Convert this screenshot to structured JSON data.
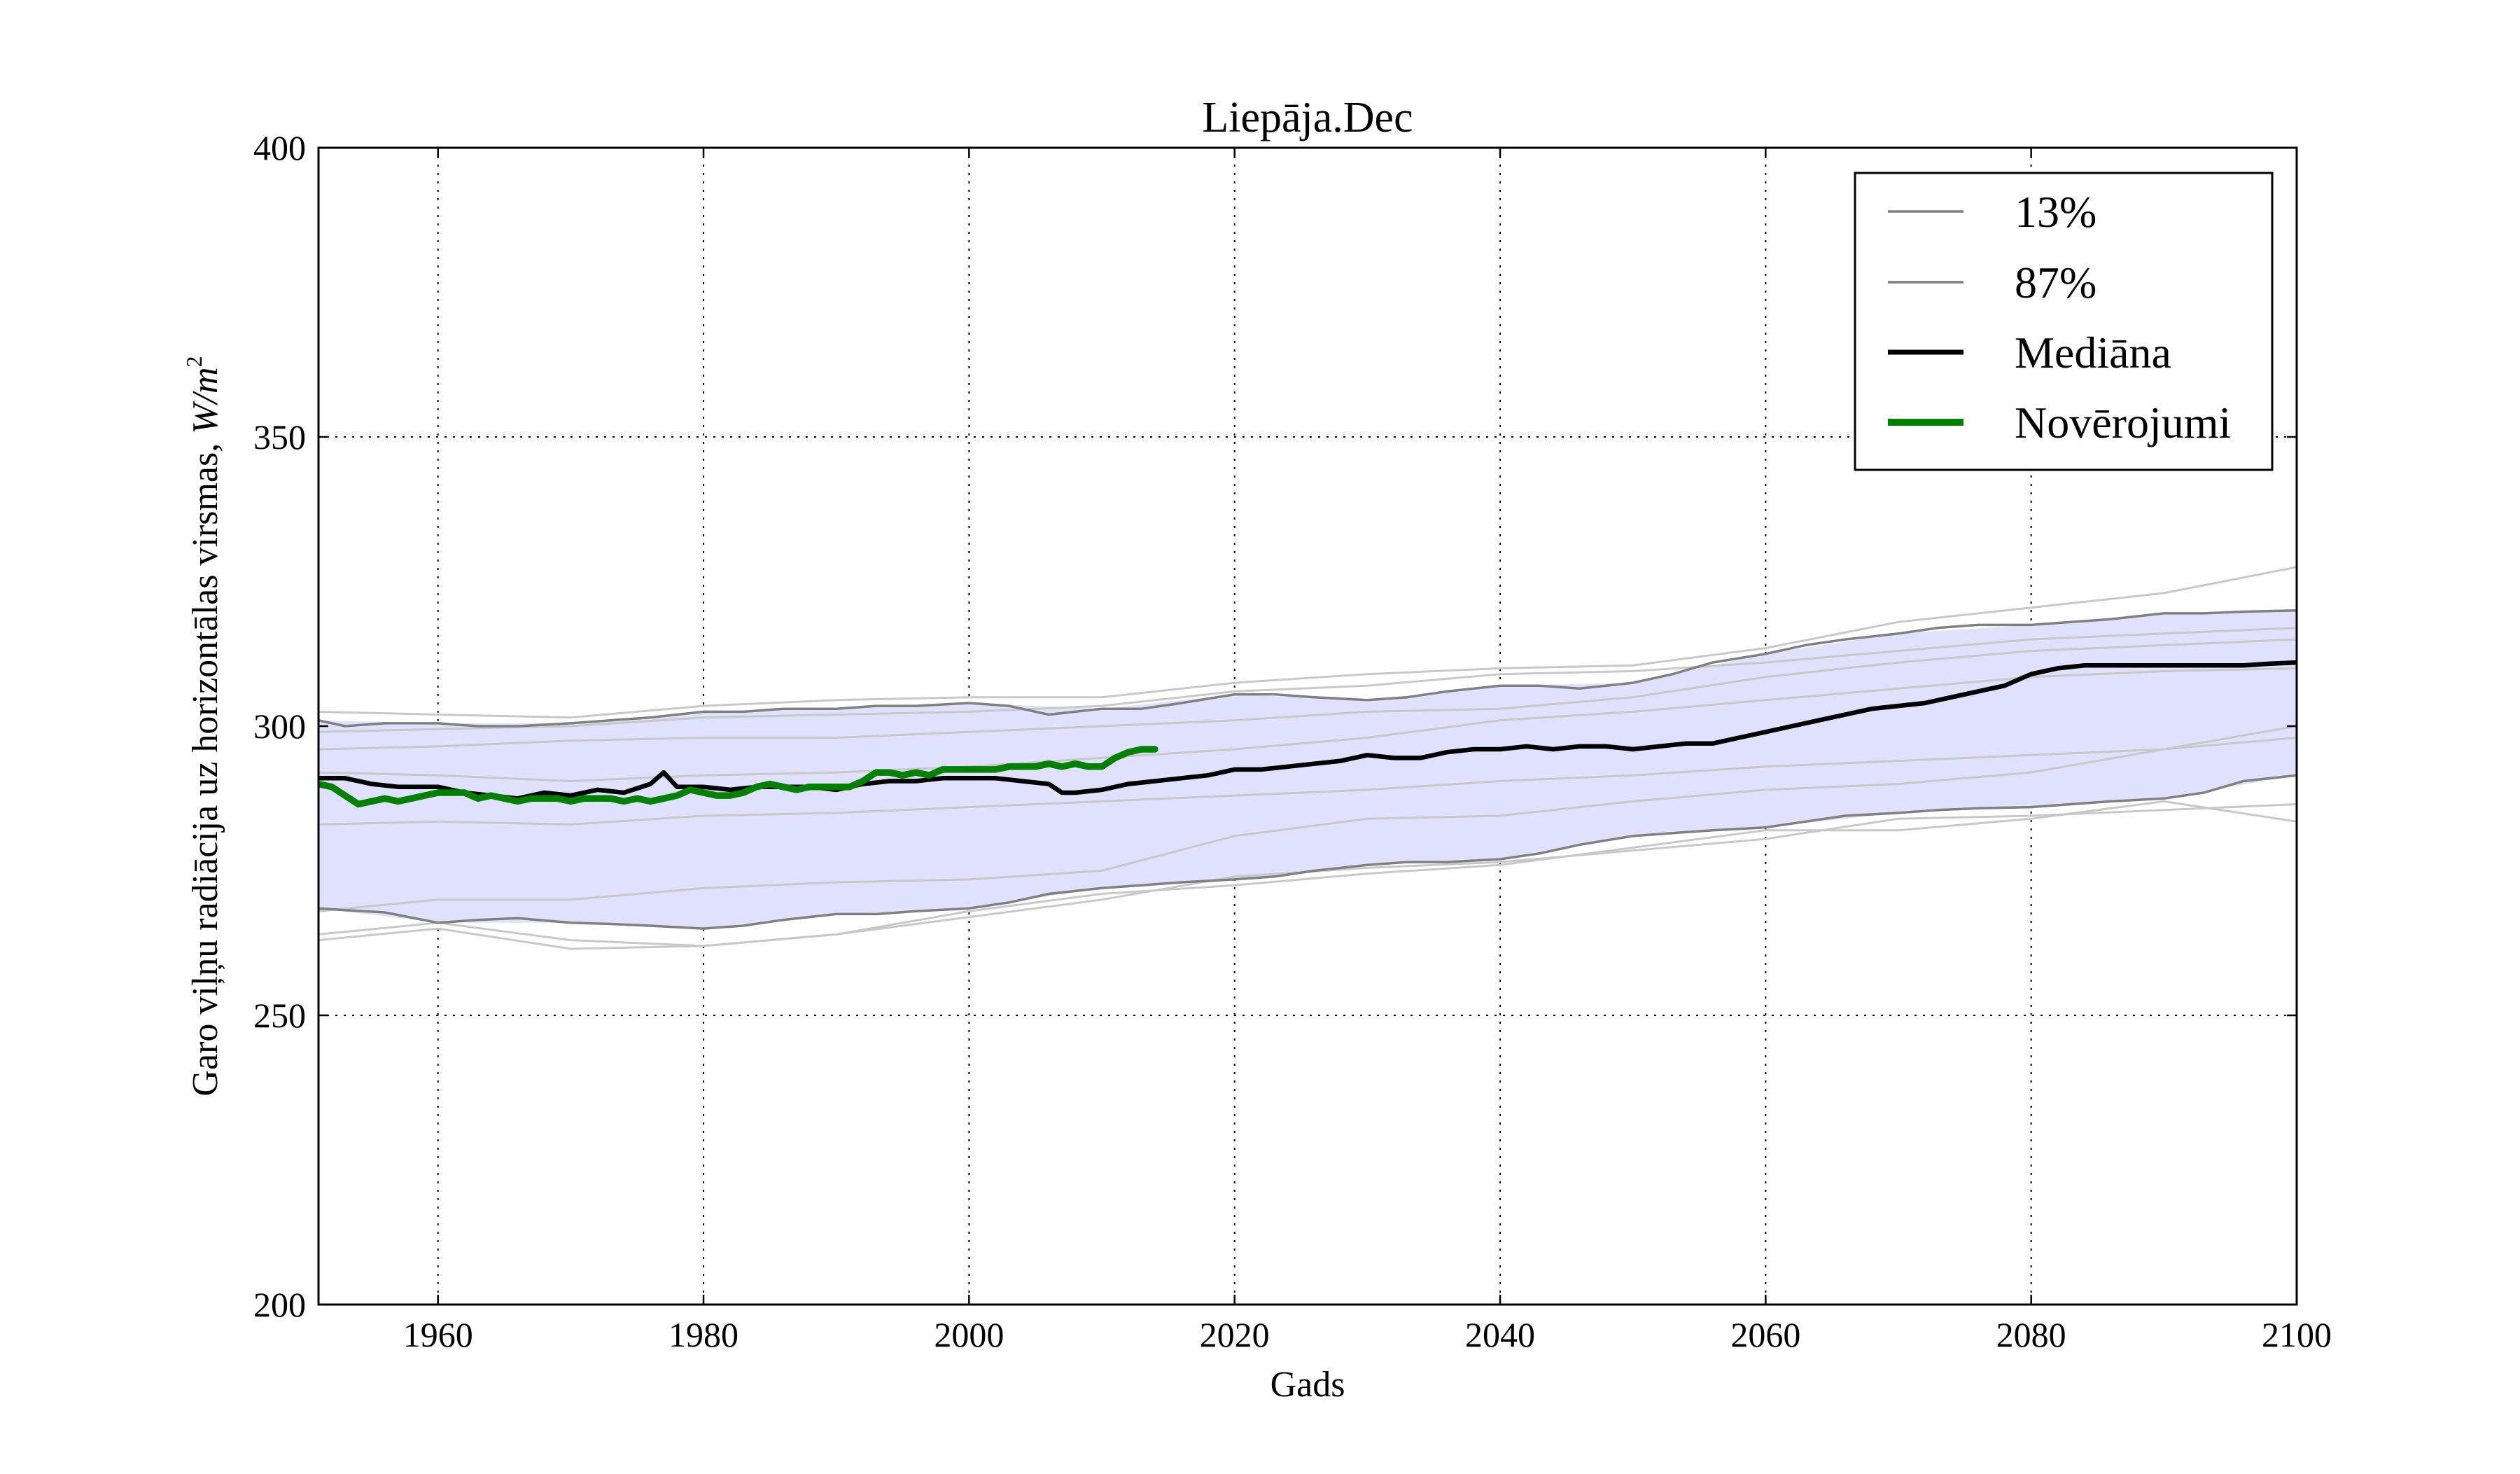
{
  "chart_data": {
    "type": "line",
    "title": "Liepāja.Dec",
    "xlabel": "Gads",
    "ylabel_text": "Garo viļņu radiācija uz horizontālas virsmas, ",
    "ylabel_unit": "W/m",
    "ylabel_unit_sup": "2",
    "xlim": [
      1951,
      2100
    ],
    "ylim": [
      200,
      400
    ],
    "x_ticks": [
      1960,
      1980,
      2000,
      2020,
      2040,
      2060,
      2080,
      2100
    ],
    "y_ticks": [
      200,
      250,
      300,
      350,
      400
    ],
    "grid": true,
    "legend_position": "top-right",
    "legend": [
      {
        "label": "13%",
        "color": "#808080"
      },
      {
        "label": "87%",
        "color": "#808080"
      },
      {
        "label": "Mediāna",
        "color": "#000000"
      },
      {
        "label": "Novērojumi",
        "color": "#008000"
      }
    ],
    "colors": {
      "band_fill": "#e0e0ff",
      "p13": "#808080",
      "p87": "#808080",
      "median": "#000000",
      "observations": "#008000",
      "members": "#c8c8c8"
    },
    "band": {
      "x": [
        1951,
        1960,
        1970,
        1980,
        1990,
        2000,
        2010,
        2020,
        2030,
        2040,
        2050,
        2060,
        2070,
        2080,
        2090,
        2100
      ],
      "lower": [
        268.5,
        266,
        266,
        265,
        267.5,
        268.5,
        272,
        273.5,
        276,
        277,
        281,
        282.5,
        285,
        286,
        287.5,
        291.5
      ],
      "upper": [
        301,
        300.5,
        300.5,
        302.5,
        303,
        304,
        303,
        305.5,
        304.5,
        307,
        307.5,
        312.5,
        316,
        317.5,
        319.5,
        320
      ]
    },
    "series": [
      {
        "name": "13%",
        "x": [
          1951,
          1953,
          1956,
          1960,
          1963,
          1966,
          1970,
          1973,
          1976,
          1980,
          1983,
          1986,
          1990,
          1993,
          1996,
          2000,
          2003,
          2006,
          2010,
          2013,
          2016,
          2020,
          2023,
          2026,
          2030,
          2033,
          2036,
          2040,
          2043,
          2046,
          2050,
          2053,
          2056,
          2060,
          2063,
          2066,
          2070,
          2073,
          2076,
          2080,
          2083,
          2086,
          2090,
          2093,
          2096,
          2100
        ],
        "values": [
          268.5,
          268.2,
          267.8,
          266,
          266.5,
          266.8,
          266,
          265.8,
          265.5,
          265,
          265.5,
          266.5,
          267.5,
          267.5,
          268,
          268.5,
          269.5,
          271,
          272,
          272.5,
          273,
          273.5,
          274,
          275,
          276,
          276.5,
          276.5,
          277,
          278,
          279.5,
          281,
          281.5,
          282,
          282.5,
          283.5,
          284.5,
          285,
          285.5,
          285.8,
          286,
          286.5,
          287,
          287.5,
          288.5,
          290.5,
          291.5
        ]
      },
      {
        "name": "87%",
        "x": [
          1951,
          1953,
          1956,
          1960,
          1963,
          1966,
          1970,
          1973,
          1976,
          1980,
          1983,
          1986,
          1990,
          1993,
          1996,
          2000,
          2003,
          2006,
          2010,
          2013,
          2016,
          2020,
          2023,
          2026,
          2030,
          2033,
          2036,
          2040,
          2043,
          2046,
          2050,
          2053,
          2056,
          2060,
          2063,
          2066,
          2070,
          2073,
          2076,
          2080,
          2083,
          2086,
          2090,
          2093,
          2096,
          2100
        ],
        "values": [
          301,
          300,
          300.5,
          300.5,
          300,
          300,
          300.5,
          301,
          301.5,
          302.5,
          302.5,
          303,
          303,
          303.5,
          303.5,
          304,
          303.5,
          302,
          303,
          303,
          304,
          305.5,
          305.5,
          305,
          304.5,
          305,
          306,
          307,
          307,
          306.5,
          307.5,
          309,
          311,
          312.5,
          314,
          315,
          316,
          317,
          317.5,
          317.5,
          318,
          318.5,
          319.5,
          319.5,
          319.8,
          320
        ]
      },
      {
        "name": "Mediāna",
        "x": [
          1951,
          1953,
          1955,
          1957,
          1960,
          1962,
          1964,
          1966,
          1968,
          1970,
          1972,
          1974,
          1976,
          1977,
          1978,
          1980,
          1982,
          1984,
          1986,
          1988,
          1990,
          1992,
          1994,
          1996,
          1998,
          2000,
          2002,
          2004,
          2006,
          2007,
          2008,
          2010,
          2012,
          2014,
          2016,
          2018,
          2020,
          2022,
          2024,
          2026,
          2028,
          2030,
          2032,
          2034,
          2036,
          2038,
          2040,
          2042,
          2044,
          2046,
          2048,
          2050,
          2052,
          2054,
          2056,
          2058,
          2060,
          2062,
          2064,
          2066,
          2068,
          2070,
          2072,
          2074,
          2076,
          2078,
          2080,
          2082,
          2084,
          2086,
          2088,
          2090,
          2092,
          2094,
          2096,
          2098,
          2100
        ],
        "values": [
          291,
          291,
          290,
          289.5,
          289.5,
          288.5,
          288,
          287.5,
          288.5,
          288,
          289,
          288.5,
          290,
          292,
          289.5,
          289.5,
          289,
          289.5,
          289.5,
          289.5,
          289,
          290,
          290.5,
          290.5,
          291,
          291,
          291,
          290.5,
          290,
          288.5,
          288.5,
          289,
          290,
          290.5,
          291,
          291.5,
          292.5,
          292.5,
          293,
          293.5,
          294,
          295,
          294.5,
          294.5,
          295.5,
          296,
          296,
          296.5,
          296,
          296.5,
          296.5,
          296,
          296.5,
          297,
          297,
          298,
          299,
          300,
          301,
          302,
          303,
          303.5,
          304,
          305,
          306,
          307,
          309,
          310,
          310.5,
          310.5,
          310.5,
          310.5,
          310.5,
          310.5,
          310.5,
          310.8,
          311
        ]
      },
      {
        "name": "Novērojumi",
        "x": [
          1951,
          1952,
          1953,
          1954,
          1955,
          1956,
          1957,
          1958,
          1959,
          1960,
          1961,
          1962,
          1963,
          1964,
          1965,
          1966,
          1967,
          1968,
          1969,
          1970,
          1971,
          1972,
          1973,
          1974,
          1975,
          1976,
          1977,
          1978,
          1979,
          1980,
          1981,
          1982,
          1983,
          1984,
          1985,
          1986,
          1987,
          1988,
          1989,
          1990,
          1991,
          1992,
          1993,
          1994,
          1995,
          1996,
          1997,
          1998,
          1999,
          2000,
          2001,
          2002,
          2003,
          2004,
          2005,
          2006,
          2007,
          2008,
          2009,
          2010,
          2011,
          2012,
          2013,
          2014
        ],
        "values": [
          290,
          289.5,
          288,
          286.5,
          287,
          287.5,
          287,
          287.5,
          288,
          288.5,
          288.5,
          288.5,
          287.5,
          288,
          287.5,
          287,
          287.5,
          287.5,
          287.5,
          287,
          287.5,
          287.5,
          287.5,
          287,
          287.5,
          287,
          287.5,
          288,
          289,
          288.5,
          288,
          288,
          288.5,
          289.5,
          290,
          289.5,
          289,
          289.5,
          289.5,
          289.5,
          289.5,
          290.5,
          292,
          292,
          291.5,
          292,
          291.5,
          292.5,
          292.5,
          292.5,
          292.5,
          292.5,
          293,
          293,
          293,
          293.5,
          293,
          293.5,
          293,
          293,
          294.5,
          295.5,
          296,
          296
        ]
      },
      {
        "name": "",
        "x": [
          1951,
          1960,
          1970,
          1980,
          1990,
          2000,
          2010,
          2020,
          2030,
          2040,
          2050,
          2060,
          2070,
          2080,
          2090,
          2100
        ],
        "values": [
          263,
          265,
          261.5,
          262,
          264,
          267,
          270,
          274,
          275.5,
          276.5,
          278.5,
          280.5,
          284,
          284.5,
          285.5,
          286.5
        ]
      },
      {
        "name": "",
        "x": [
          1951,
          1960,
          1970,
          1980,
          1990,
          2000,
          2010,
          2020,
          2030,
          2040,
          2050,
          2060,
          2070,
          2080,
          2090,
          2100
        ],
        "values": [
          264,
          266,
          263,
          262,
          264,
          268,
          271,
          272.5,
          274.5,
          276,
          279,
          282,
          282,
          284,
          287,
          283.5
        ]
      },
      {
        "name": "",
        "x": [
          1951,
          1960,
          1970,
          1980,
          1990,
          2000,
          2010,
          2020,
          2030,
          2040,
          2050,
          2060,
          2070,
          2080,
          2090,
          2100
        ],
        "values": [
          268,
          270,
          270,
          272,
          273,
          273.5,
          275,
          281,
          284,
          284.5,
          287,
          289,
          290,
          292,
          296,
          300
        ]
      },
      {
        "name": "",
        "x": [
          1951,
          1960,
          1970,
          1980,
          1990,
          2000,
          2010,
          2020,
          2030,
          2040,
          2050,
          2060,
          2070,
          2080,
          2090,
          2100
        ],
        "values": [
          283,
          283.5,
          283,
          284.5,
          285,
          286,
          287,
          288,
          289,
          290.5,
          291.5,
          293,
          294,
          295,
          296,
          298
        ]
      },
      {
        "name": "",
        "x": [
          1951,
          1960,
          1970,
          1980,
          1990,
          2000,
          2010,
          2020,
          2030,
          2040,
          2050,
          2060,
          2070,
          2080,
          2090,
          2100
        ],
        "values": [
          292,
          291.5,
          290.5,
          291.5,
          292,
          293,
          294.5,
          296,
          298,
          301,
          302.5,
          304.5,
          306.5,
          308.5,
          309.5,
          310
        ]
      },
      {
        "name": "",
        "x": [
          1951,
          1960,
          1970,
          1980,
          1990,
          2000,
          2010,
          2020,
          2030,
          2040,
          2050,
          2060,
          2070,
          2080,
          2090,
          2100
        ],
        "values": [
          296,
          296.5,
          297.5,
          298,
          298,
          299,
          300,
          301,
          302.5,
          303,
          305,
          308.5,
          311,
          313,
          314,
          315
        ]
      },
      {
        "name": "",
        "x": [
          1951,
          1960,
          1970,
          1980,
          1990,
          2000,
          2010,
          2020,
          2030,
          2040,
          2050,
          2060,
          2070,
          2080,
          2090,
          2100
        ],
        "values": [
          299,
          299.5,
          300,
          301.5,
          302,
          302.5,
          303.5,
          306,
          307,
          309,
          309.5,
          311,
          313,
          315,
          316,
          317
        ]
      },
      {
        "name": "",
        "x": [
          1951,
          1960,
          1970,
          1980,
          1990,
          2000,
          2010,
          2020,
          2030,
          2040,
          2050,
          2060,
          2070,
          2080,
          2090,
          2100
        ],
        "values": [
          302.5,
          302,
          301.5,
          303.5,
          304.5,
          305,
          305,
          307.5,
          309,
          310,
          310.5,
          313.5,
          318,
          320.5,
          323,
          327.5
        ]
      }
    ]
  }
}
